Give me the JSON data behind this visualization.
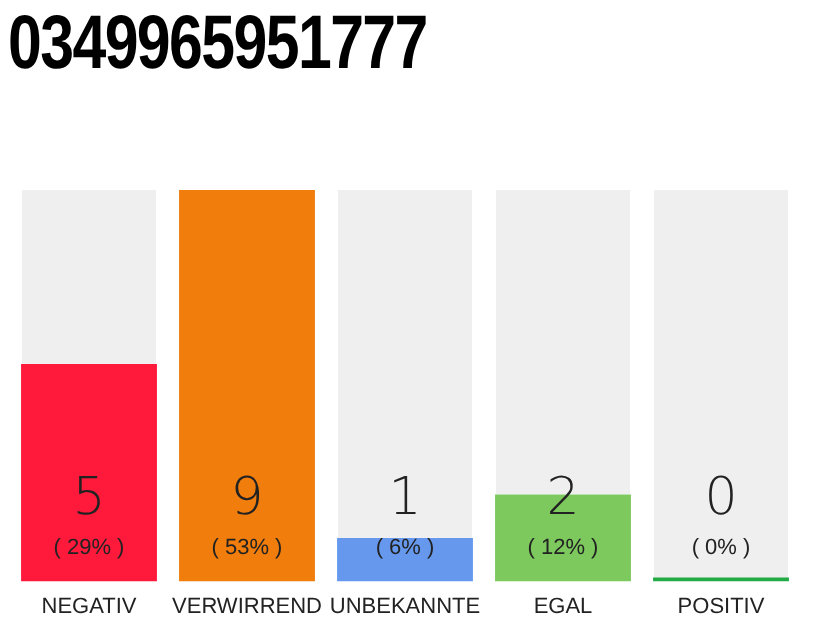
{
  "chart_data": {
    "type": "bar",
    "title": "0349965951777",
    "categories": [
      "NEGATIV",
      "VERWIRREND",
      "UNBEKANNTE",
      "EGAL",
      "POSITIV"
    ],
    "values": [
      5,
      9,
      1,
      2,
      0
    ],
    "colors": [
      "#ff1a3c",
      "#f07d0c",
      "#6699ee",
      "#7dc95e",
      "#22aa44"
    ],
    "value_labels": [
      "5\n( 29% )",
      "9\n( 53% )",
      "1\n( 6% )",
      "2\n( 12% )",
      "0\n( 0% )"
    ],
    "tick_labels": "x",
    "grid": false,
    "legend": false
  }
}
